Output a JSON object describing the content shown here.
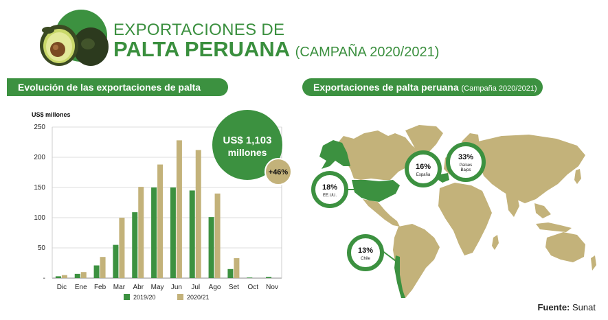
{
  "header": {
    "title_line1": "EXPORTACIONES DE",
    "title_line2": "PALTA PERUANA",
    "title_campaign": "(CAMPAÑA 2020/2021)",
    "icon": "avocado-icon"
  },
  "left_panel": {
    "banner": "Evolución de las exportaciones de palta"
  },
  "right_panel": {
    "banner_main": "Exportaciones de palta peruana",
    "banner_small": "(Campaña 2020/2021)"
  },
  "callout": {
    "value": "US$ 1,103",
    "unit": "millones",
    "growth": "+46%"
  },
  "chart_data": {
    "type": "bar",
    "ylabel": "US$ millones",
    "ylim": [
      0,
      250
    ],
    "yticks": [
      0,
      50,
      100,
      150,
      200,
      250
    ],
    "ytick_labels": [
      "-",
      "50",
      "100",
      "150",
      "200",
      "250"
    ],
    "categories": [
      "Dic",
      "Ene",
      "Feb",
      "Mar",
      "Abr",
      "May",
      "Jun",
      "Jul",
      "Ago",
      "Set",
      "Oct",
      "Nov"
    ],
    "series": [
      {
        "name": "2019/20",
        "color": "#3c9140",
        "values": [
          3,
          7,
          21,
          55,
          109,
          150,
          150,
          145,
          101,
          15,
          1,
          2
        ]
      },
      {
        "name": "2020/21",
        "color": "#c3b27a",
        "values": [
          5,
          10,
          35,
          100,
          151,
          188,
          228,
          212,
          140,
          33,
          0,
          0
        ]
      }
    ],
    "legend_position": "bottom"
  },
  "map": {
    "land_color": "#c3b27a",
    "highlight_color": "#3c9140",
    "markers": [
      {
        "pct": "18%",
        "label": "EE.UU."
      },
      {
        "pct": "16%",
        "label": "España"
      },
      {
        "pct": "33%",
        "label": "Países",
        "label2": "Bajos"
      },
      {
        "pct": "13%",
        "label": "Chile"
      }
    ]
  },
  "source": {
    "label": "Fuente:",
    "value": "Sunat"
  }
}
